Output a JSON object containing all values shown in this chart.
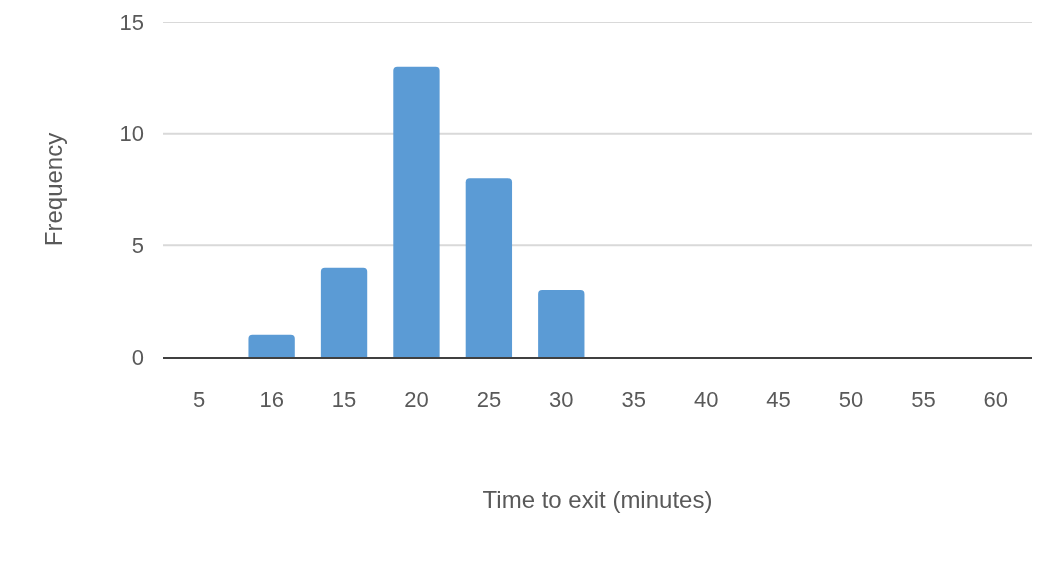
{
  "chart_data": {
    "type": "bar",
    "xlabel": "Time to exit (minutes)",
    "ylabel": "Frequency",
    "categories": [
      "5",
      "16",
      "15",
      "20",
      "25",
      "30",
      "35",
      "40",
      "45",
      "50",
      "55",
      "60"
    ],
    "values": [
      0,
      1,
      4,
      13,
      8,
      3,
      0,
      0,
      0,
      0,
      0,
      0
    ],
    "color": "#5b9bd5",
    "ylim": [
      0,
      15
    ],
    "yticks": [
      0,
      5,
      10,
      15
    ],
    "grid": "y"
  }
}
